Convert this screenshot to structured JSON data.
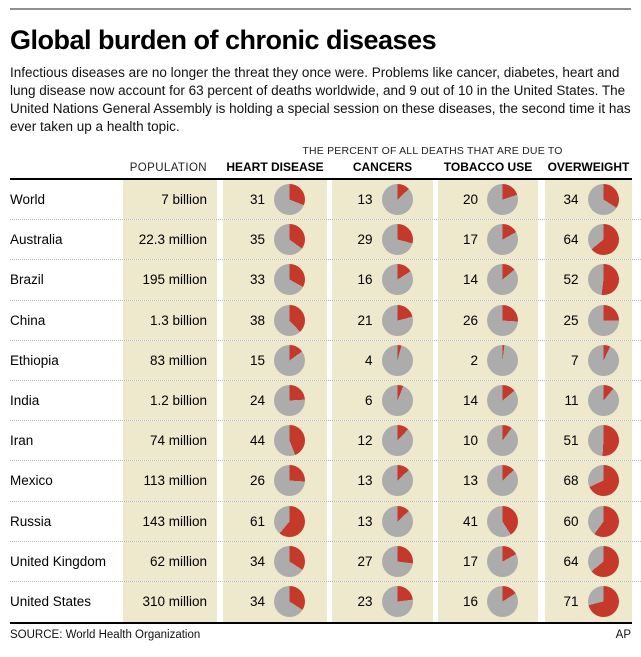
{
  "title": "Global burden of chronic diseases",
  "intro": "Infectious diseases are no longer the threat they once were. Problems like cancer, diabetes, heart and lung disease now account for 63 percent of deaths worldwide, and 9 out of 10 in the United States. The United Nations General Assembly is holding a special session on these diseases, the second time it has ever taken up a health topic.",
  "table": {
    "span_header": "THE PERCENT OF ALL DEATHS THAT ARE DUE TO",
    "columns": [
      "POPULATION",
      "HEART DISEASE",
      "CANCERS",
      "TOBACCO USE",
      "OVERWEIGHT"
    ]
  },
  "chart_data": {
    "type": "pie",
    "title": "Global burden of chronic diseases",
    "subtitle": "THE PERCENT OF ALL DEATHS THAT ARE DUE TO",
    "unit": "percent of all deaths",
    "categories": [
      "World",
      "Australia",
      "Brazil",
      "China",
      "Ethiopia",
      "India",
      "Iran",
      "Mexico",
      "Russia",
      "United Kingdom",
      "United States"
    ],
    "population": [
      "7 billion",
      "22.3 million",
      "195 million",
      "1.3 billion",
      "83 million",
      "1.2 billion",
      "74 million",
      "113 million",
      "143 million",
      "62 million",
      "310 million"
    ],
    "series": [
      {
        "name": "HEART DISEASE",
        "values": [
          31,
          35,
          33,
          38,
          15,
          24,
          44,
          26,
          61,
          34,
          34
        ]
      },
      {
        "name": "CANCERS",
        "values": [
          13,
          29,
          16,
          21,
          4,
          6,
          12,
          13,
          13,
          27,
          23
        ]
      },
      {
        "name": "TOBACCO USE",
        "values": [
          20,
          17,
          14,
          26,
          2,
          14,
          10,
          13,
          41,
          17,
          16
        ]
      },
      {
        "name": "OVERWEIGHT",
        "values": [
          34,
          64,
          52,
          25,
          7,
          11,
          51,
          68,
          60,
          64,
          71
        ]
      }
    ],
    "colors": {
      "slice": "#c5392a",
      "remainder": "#acacac",
      "band": "#eee8cd"
    }
  },
  "footer": {
    "source": "SOURCE: World Health Organization",
    "credit": "AP"
  }
}
